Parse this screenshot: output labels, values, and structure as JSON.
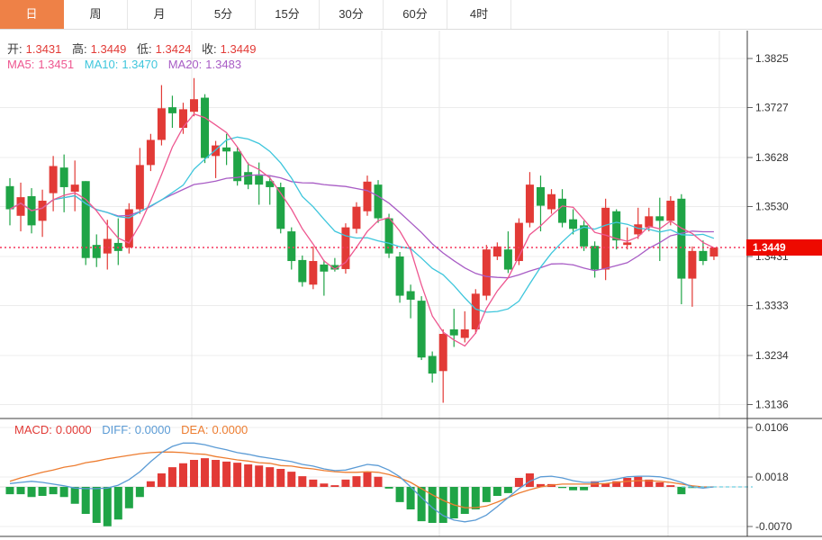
{
  "tabs": [
    {
      "name": "tab-day",
      "label": "日",
      "selected": true
    },
    {
      "name": "tab-week",
      "label": "周",
      "selected": false
    },
    {
      "name": "tab-month",
      "label": "月",
      "selected": false
    },
    {
      "name": "tab-5min",
      "label": "5分",
      "selected": false
    },
    {
      "name": "tab-15min",
      "label": "15分",
      "selected": false
    },
    {
      "name": "tab-30min",
      "label": "30分",
      "selected": false
    },
    {
      "name": "tab-60min",
      "label": "60分",
      "selected": false
    },
    {
      "name": "tab-4hour",
      "label": "4时",
      "selected": false
    }
  ],
  "ohlc_bar": {
    "open_label": "开:",
    "open": "1.3431",
    "high_label": "高:",
    "high": "1.3449",
    "low_label": "低:",
    "low": "1.3424",
    "close_label": "收:",
    "close": "1.3449"
  },
  "ma_bar": {
    "ma5_label": "MA5:",
    "ma5": "1.3451",
    "ma10_label": "MA10:",
    "ma10": "1.3470",
    "ma20_label": "MA20:",
    "ma20": "1.3483"
  },
  "macd_bar": {
    "macd_label": "MACD:",
    "macd": "0.0000",
    "diff_label": "DIFF:",
    "diff": "0.0000",
    "dea_label": "DEA:",
    "dea": "0.0000"
  },
  "price_axis": {
    "current_price_badge": "1.3449"
  },
  "colors": {
    "up": "#e23a36",
    "down": "#1fa446",
    "ma5": "#ee5790",
    "ma10": "#3ec6dc",
    "ma20": "#a85cc5",
    "diff": "#5b9bd5",
    "dea": "#ed7d31",
    "tab_accent": "#ee8147",
    "badge_bg": "#ee0a00",
    "price_line": "#f5365c",
    "grid": "#ececec",
    "vgrid": "#e7e7e7",
    "border": "#3c3c3c",
    "axis_text": "#333333",
    "zero_dash": "#6ecfe0"
  },
  "chart_data": {
    "type": "candlestick_with_macd",
    "title": "",
    "price_gridlines": [
      1.3825,
      1.3727,
      1.3628,
      1.353,
      1.3431,
      1.3333,
      1.3234,
      1.3136
    ],
    "current_price": 1.3449,
    "ma_periods": [
      5,
      10,
      20
    ],
    "time_separators_x": {
      "main": [
        213,
        424,
        488,
        742,
        799
      ],
      "macd": [
        488,
        742
      ]
    },
    "candles": [
      [
        1.3571,
        1.3587,
        1.3493,
        1.3525
      ],
      [
        1.3512,
        1.3578,
        1.3481,
        1.3549
      ],
      [
        1.3551,
        1.3567,
        1.3477,
        1.3493
      ],
      [
        1.3502,
        1.3564,
        1.347,
        1.3542
      ],
      [
        1.3557,
        1.3631,
        1.3521,
        1.3611
      ],
      [
        1.3608,
        1.3634,
        1.3519,
        1.3569
      ],
      [
        1.356,
        1.3622,
        1.3521,
        1.3574
      ],
      [
        1.3581,
        1.3581,
        1.3414,
        1.3428
      ],
      [
        1.3454,
        1.3475,
        1.341,
        1.3428
      ],
      [
        1.3437,
        1.3504,
        1.3405,
        1.3466
      ],
      [
        1.3458,
        1.3507,
        1.3414,
        1.3442
      ],
      [
        1.3449,
        1.3537,
        1.3437,
        1.3525
      ],
      [
        1.3525,
        1.3647,
        1.3516,
        1.3613
      ],
      [
        1.3613,
        1.3675,
        1.3601,
        1.3663
      ],
      [
        1.3663,
        1.3772,
        1.3652,
        1.3726
      ],
      [
        1.3728,
        1.3751,
        1.3687,
        1.3716
      ],
      [
        1.3687,
        1.3737,
        1.3675,
        1.3724
      ],
      [
        1.3719,
        1.3786,
        1.371,
        1.3744
      ],
      [
        1.3747,
        1.3754,
        1.3617,
        1.3627
      ],
      [
        1.3631,
        1.3661,
        1.3587,
        1.3652
      ],
      [
        1.3648,
        1.3675,
        1.3613,
        1.364
      ],
      [
        1.364,
        1.3648,
        1.3572,
        1.3581
      ],
      [
        1.3599,
        1.3618,
        1.3565,
        1.3574
      ],
      [
        1.3592,
        1.3618,
        1.3534,
        1.3574
      ],
      [
        1.3581,
        1.359,
        1.3534,
        1.3569
      ],
      [
        1.3569,
        1.3578,
        1.3477,
        1.3486
      ],
      [
        1.3481,
        1.3489,
        1.3405,
        1.3422
      ],
      [
        1.3424,
        1.3433,
        1.3371,
        1.338
      ],
      [
        1.3375,
        1.3451,
        1.3366,
        1.3422
      ],
      [
        1.3415,
        1.3424,
        1.3353,
        1.3401
      ],
      [
        1.3414,
        1.3428,
        1.3401,
        1.3405
      ],
      [
        1.3406,
        1.3497,
        1.3397,
        1.3489
      ],
      [
        1.3486,
        1.3539,
        1.3477,
        1.353
      ],
      [
        1.3521,
        1.3592,
        1.3512,
        1.358
      ],
      [
        1.3574,
        1.3583,
        1.3498,
        1.3507
      ],
      [
        1.3507,
        1.3516,
        1.3428,
        1.3437
      ],
      [
        1.3431,
        1.344,
        1.3339,
        1.3353
      ],
      [
        1.3362,
        1.3375,
        1.3308,
        1.3345
      ],
      [
        1.3343,
        1.3352,
        1.3225,
        1.323
      ],
      [
        1.3233,
        1.3242,
        1.318,
        1.3198
      ],
      [
        1.3203,
        1.3286,
        1.314,
        1.3277
      ],
      [
        1.3286,
        1.3327,
        1.3251,
        1.3274
      ],
      [
        1.3269,
        1.3322,
        1.326,
        1.3286
      ],
      [
        1.3286,
        1.3366,
        1.3277,
        1.3357
      ],
      [
        1.3353,
        1.3454,
        1.3344,
        1.3445
      ],
      [
        1.3431,
        1.3459,
        1.3424,
        1.3451
      ],
      [
        1.3445,
        1.3481,
        1.3398,
        1.3405
      ],
      [
        1.3422,
        1.3507,
        1.3414,
        1.3498
      ],
      [
        1.3498,
        1.3599,
        1.3489,
        1.3574
      ],
      [
        1.3569,
        1.3592,
        1.3481,
        1.3532
      ],
      [
        1.3525,
        1.3565,
        1.3516,
        1.3555
      ],
      [
        1.3546,
        1.3565,
        1.3489,
        1.3498
      ],
      [
        1.3505,
        1.3525,
        1.3475,
        1.3486
      ],
      [
        1.3493,
        1.3502,
        1.3442,
        1.3451
      ],
      [
        1.3452,
        1.3461,
        1.3389,
        1.3405
      ],
      [
        1.3405,
        1.3546,
        1.3384,
        1.3528
      ],
      [
        1.3521,
        1.3525,
        1.3445,
        1.3463
      ],
      [
        1.3454,
        1.3489,
        1.3445,
        1.3459
      ],
      [
        1.3475,
        1.3528,
        1.3466,
        1.3495
      ],
      [
        1.3489,
        1.3528,
        1.3481,
        1.3511
      ],
      [
        1.3511,
        1.3548,
        1.3422,
        1.3502
      ],
      [
        1.3502,
        1.3551,
        1.3493,
        1.3542
      ],
      [
        1.3546,
        1.3555,
        1.3336,
        1.3387
      ],
      [
        1.3387,
        1.3451,
        1.3331,
        1.3442
      ],
      [
        1.3442,
        1.3463,
        1.3414,
        1.3422
      ],
      [
        1.3431,
        1.3449,
        1.3424,
        1.3449
      ]
    ],
    "macd": {
      "gridlines": [
        0.0106,
        0.0018,
        -0.007
      ],
      "histogram": [
        -0.0013,
        -0.0013,
        -0.0018,
        -0.0016,
        -0.0013,
        -0.0018,
        -0.003,
        -0.0048,
        -0.0064,
        -0.007,
        -0.0058,
        -0.0038,
        -0.0018,
        0.001,
        0.0024,
        0.0035,
        0.0042,
        0.0048,
        0.0051,
        0.0048,
        0.0045,
        0.0043,
        0.004,
        0.0038,
        0.0035,
        0.0032,
        0.0027,
        0.0019,
        0.0013,
        0.0006,
        0.0003,
        0.0013,
        0.0019,
        0.0026,
        0.0018,
        -0.0003,
        -0.0027,
        -0.004,
        -0.0061,
        -0.0064,
        -0.0064,
        -0.0056,
        -0.0048,
        -0.004,
        -0.0027,
        -0.0016,
        -0.0011,
        0.0016,
        0.0024,
        0.0005,
        0.0005,
        -0.0002,
        -0.0006,
        -0.0006,
        0.001,
        0.0006,
        0.001,
        0.0016,
        0.0018,
        0.0013,
        0.0008,
        0.0003,
        -0.0013,
        -0.0002,
        0.0,
        0.0
      ],
      "diff": [
        0.0006,
        0.0008,
        0.001,
        0.0008,
        0.0005,
        0.0002,
        -0.0002,
        -0.0003,
        -0.0003,
        -0.0002,
        0.0003,
        0.0013,
        0.0027,
        0.0045,
        0.0061,
        0.0072,
        0.0078,
        0.0078,
        0.0075,
        0.007,
        0.0066,
        0.0061,
        0.0058,
        0.0054,
        0.0051,
        0.0048,
        0.0045,
        0.004,
        0.0037,
        0.0032,
        0.0029,
        0.003,
        0.0035,
        0.004,
        0.0038,
        0.003,
        0.0018,
        0.0,
        -0.0019,
        -0.0037,
        -0.0051,
        -0.0059,
        -0.0062,
        -0.0059,
        -0.005,
        -0.0035,
        -0.0019,
        -0.0003,
        0.001,
        0.0018,
        0.0019,
        0.0016,
        0.0011,
        0.0008,
        0.0008,
        0.0011,
        0.0014,
        0.0018,
        0.0019,
        0.0019,
        0.0018,
        0.0014,
        0.0008,
        0.0,
        -0.0002,
        0.0
      ],
      "dea": [
        0.001,
        0.0016,
        0.0021,
        0.0026,
        0.003,
        0.0035,
        0.0038,
        0.0043,
        0.0046,
        0.005,
        0.0053,
        0.0056,
        0.0059,
        0.0061,
        0.0062,
        0.0062,
        0.0061,
        0.0059,
        0.0058,
        0.0054,
        0.0051,
        0.0048,
        0.0046,
        0.0043,
        0.0042,
        0.0038,
        0.0037,
        0.0034,
        0.0032,
        0.0029,
        0.0027,
        0.0026,
        0.0026,
        0.0027,
        0.0026,
        0.0022,
        0.0016,
        0.0008,
        -0.0003,
        -0.0014,
        -0.0024,
        -0.0032,
        -0.0037,
        -0.0037,
        -0.0034,
        -0.0027,
        -0.0019,
        -0.0011,
        -0.0005,
        0.0,
        0.0003,
        0.0005,
        0.0005,
        0.0005,
        0.0005,
        0.0006,
        0.0008,
        0.001,
        0.0011,
        0.0011,
        0.001,
        0.0008,
        0.0005,
        0.0002,
        0.0,
        0.0
      ]
    }
  }
}
